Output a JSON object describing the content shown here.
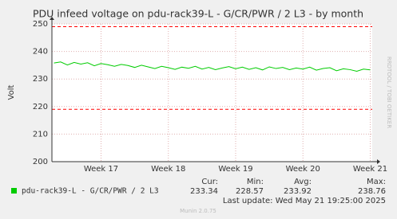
{
  "chart_data": {
    "type": "line",
    "title": "PDU infeed voltage on pdu-rack39-L - G/CR/PWR / 2 L3 - by month",
    "y_label": "Volt",
    "side_text": "RRDTOOL / TOBI OETIKER",
    "x": [
      16.3,
      16.4,
      16.5,
      16.6,
      16.7,
      16.8,
      16.9,
      17.0,
      17.1,
      17.2,
      17.3,
      17.4,
      17.5,
      17.6,
      17.7,
      17.8,
      17.9,
      18.0,
      18.1,
      18.2,
      18.3,
      18.4,
      18.5,
      18.6,
      18.7,
      18.8,
      18.9,
      19.0,
      19.1,
      19.2,
      19.3,
      19.4,
      19.5,
      19.6,
      19.7,
      19.8,
      19.9,
      20.0,
      20.1,
      20.2,
      20.3,
      20.4,
      20.5,
      20.6,
      20.7,
      20.8,
      20.9,
      21.0
    ],
    "series": [
      {
        "name": "pdu-rack39-L - G/CR/PWR / 2 L3",
        "color": "#00cc00",
        "values": [
          235.8,
          236.2,
          235.1,
          236.0,
          235.4,
          235.9,
          234.8,
          235.6,
          235.2,
          234.6,
          235.3,
          234.9,
          234.2,
          235.0,
          234.4,
          233.8,
          234.6,
          234.1,
          233.5,
          234.3,
          233.9,
          234.6,
          233.6,
          234.2,
          233.4,
          234.0,
          234.5,
          233.7,
          234.3,
          233.5,
          234.1,
          233.3,
          234.4,
          233.8,
          234.2,
          233.4,
          234.0,
          233.6,
          234.3,
          233.2,
          233.8,
          234.1,
          233.0,
          233.7,
          233.4,
          232.8,
          233.6,
          233.3
        ]
      }
    ],
    "threshold_lines": [
      249,
      219
    ],
    "threshold_color": "#ff0000",
    "xlim": [
      16.27,
      21.03
    ],
    "xticks": [
      {
        "value": 17,
        "label": "Week 17"
      },
      {
        "value": 18,
        "label": "Week 18"
      },
      {
        "value": 19,
        "label": "Week 19"
      },
      {
        "value": 20,
        "label": "Week 20"
      },
      {
        "value": 21,
        "label": "Week 21"
      }
    ],
    "ylim": [
      200,
      250
    ],
    "yticks": [
      200,
      210,
      220,
      230,
      240,
      250
    ],
    "grid": true,
    "stats": {
      "headers": [
        "Cur:",
        "Min:",
        "Avg:",
        "Max:"
      ],
      "values": [
        233.34,
        228.57,
        233.92,
        238.76
      ]
    },
    "last_update": "Last update: Wed May 21 19:25:00 2025",
    "footer": "Munin 2.0.75"
  }
}
